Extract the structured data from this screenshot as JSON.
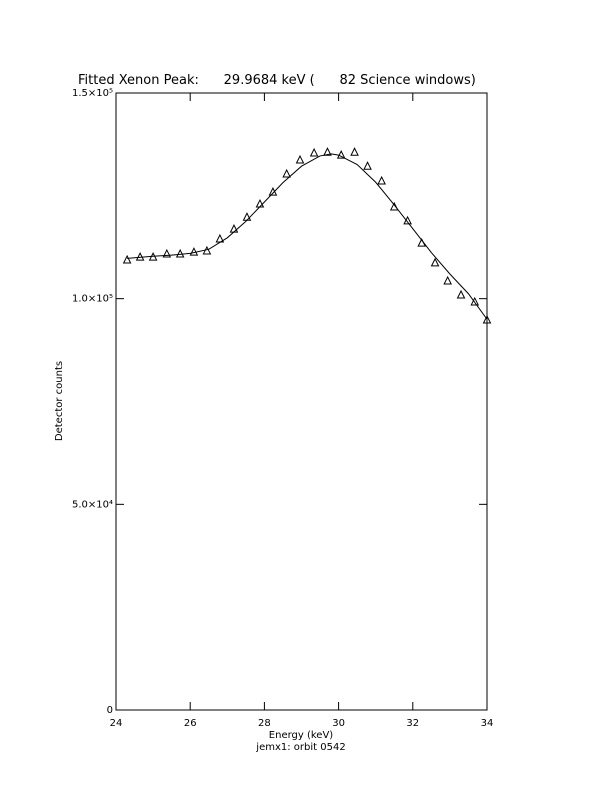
{
  "chart_data": {
    "type": "scatter",
    "title": "Fitted Xenon Peak:      29.9684 keV (      82 Science windows)",
    "x_label": "Energy (keV)",
    "subtitle": "jemx1: orbit 0542",
    "y_label": "Detector counts",
    "xlim": [
      24,
      34
    ],
    "xticks": [
      24,
      26,
      28,
      30,
      32,
      34
    ],
    "ylim": [
      0,
      150000
    ],
    "yticks": [
      0,
      {
        "value": 50000,
        "label": "5.0×10⁴"
      },
      {
        "value": 100000,
        "label": "1.0×10⁵"
      },
      {
        "value": 150000,
        "label": "1.5×10⁵"
      }
    ],
    "series": [
      {
        "style": "marker",
        "color": "#000000",
        "x": [
          24.3,
          24.65,
          25.0,
          25.37,
          25.73,
          26.1,
          26.45,
          26.8,
          27.18,
          27.53,
          27.88,
          28.23,
          28.6,
          28.96,
          29.34,
          29.7,
          30.07,
          30.43,
          30.78,
          31.16,
          31.5,
          31.86,
          32.24,
          32.6,
          32.94,
          33.3,
          33.67,
          34.0
        ],
        "values": [
          109400,
          110100,
          110100,
          110850,
          110850,
          111300,
          111600,
          114500,
          116900,
          119800,
          123000,
          125900,
          130300,
          133700,
          135400,
          135600,
          134900,
          135600,
          132200,
          128600,
          122300,
          118900,
          113500,
          108700,
          104300,
          100900,
          99200,
          94800
        ]
      },
      {
        "style": "line",
        "color": "#000000",
        "x": [
          24.3,
          25,
          25.5,
          26,
          26.5,
          27,
          27.5,
          28,
          28.5,
          29,
          29.5,
          29.8,
          30,
          30.5,
          31,
          31.5,
          32,
          32.5,
          33,
          33.5,
          34
        ],
        "values": [
          109800,
          110300,
          110600,
          111000,
          112000,
          114800,
          118800,
          123500,
          128200,
          132200,
          134700,
          135200,
          134900,
          132600,
          128300,
          122800,
          117000,
          111200,
          106000,
          101200,
          95000
        ]
      }
    ]
  }
}
